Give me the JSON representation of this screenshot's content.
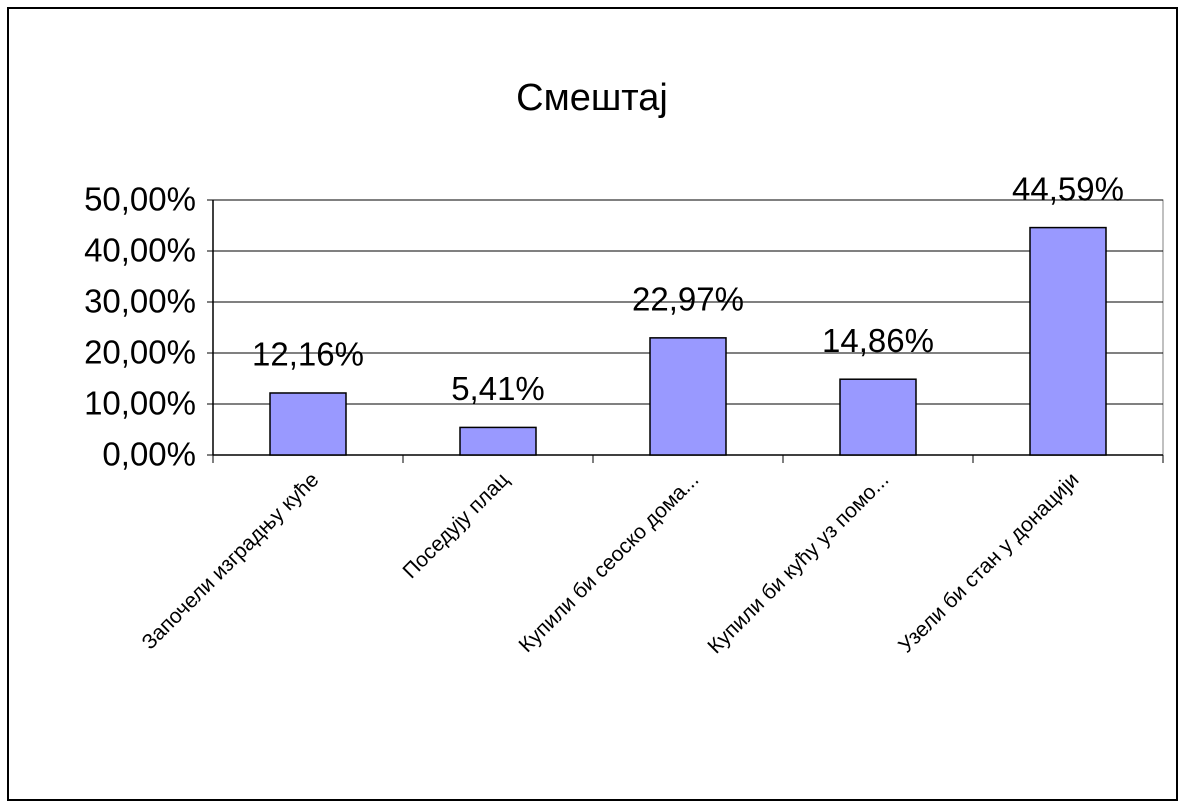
{
  "chart_data": {
    "type": "bar",
    "title": "Смештај",
    "categories": [
      "Започели изградњу куће",
      "Поседују плац",
      "Купили би сеоско дома...",
      "Купили би кућу уз помо...",
      "Узели би стан у донацији"
    ],
    "values": [
      12.16,
      5.41,
      22.97,
      14.86,
      44.59
    ],
    "value_labels": [
      "12,16%",
      "5,41%",
      "22,97%",
      "14,86%",
      "44,59%"
    ],
    "color": "#9999ff",
    "ylim": [
      0,
      50
    ],
    "yticks": [
      {
        "value": 0,
        "label": "0,00%"
      },
      {
        "value": 10,
        "label": "10,00%"
      },
      {
        "value": 20,
        "label": "20,00%"
      },
      {
        "value": 30,
        "label": "30,00%"
      },
      {
        "value": 40,
        "label": "40,00%"
      },
      {
        "value": 50,
        "label": "50,00%"
      }
    ],
    "grid": true
  }
}
